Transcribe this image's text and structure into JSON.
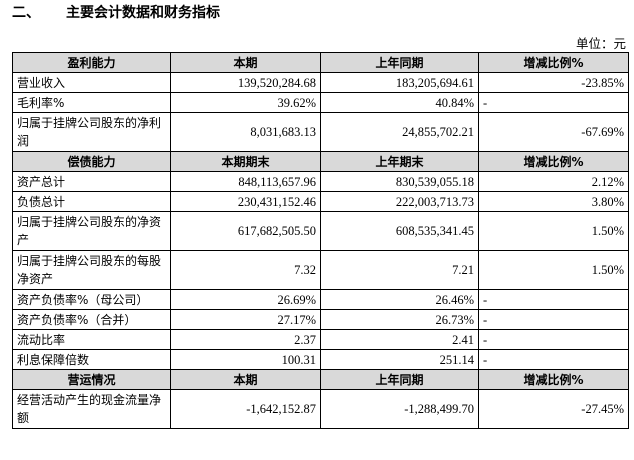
{
  "header": {
    "number": "二、",
    "title": "主要会计数据和财务指标",
    "unit": "单位：元"
  },
  "table": {
    "sections": [
      {
        "header": [
          "盈利能力",
          "本期",
          "上年同期",
          "增减比例%"
        ],
        "rows": [
          [
            "营业收入",
            "139,520,284.68",
            "183,205,694.61",
            "-23.85%"
          ],
          [
            "毛利率%",
            "39.62%",
            "40.84%",
            "-"
          ],
          [
            "归属于挂牌公司股东的净利润",
            "8,031,683.13",
            "24,855,702.21",
            "-67.69%"
          ]
        ]
      },
      {
        "header": [
          "偿债能力",
          "本期期末",
          "上年期末",
          "增减比例%"
        ],
        "rows": [
          [
            "资产总计",
            "848,113,657.96",
            "830,539,055.18",
            "2.12%"
          ],
          [
            "负债总计",
            "230,431,152.46",
            "222,003,713.73",
            "3.80%"
          ],
          [
            "归属于挂牌公司股东的净资产",
            "617,682,505.50",
            "608,535,341.45",
            "1.50%"
          ],
          [
            "归属于挂牌公司股东的每股净资产",
            "7.32",
            "7.21",
            "1.50%"
          ],
          [
            "资产负债率%（母公司）",
            "26.69%",
            "26.46%",
            "-"
          ],
          [
            "资产负债率%（合并）",
            "27.17%",
            "26.73%",
            "-"
          ],
          [
            "流动比率",
            "2.37",
            "2.41",
            "-"
          ],
          [
            "利息保障倍数",
            "100.31",
            "251.14",
            "-"
          ]
        ]
      },
      {
        "header": [
          "营运情况",
          "本期",
          "上年同期",
          "增减比例%"
        ],
        "rows": [
          [
            "经营活动产生的现金流量净额",
            "-1,642,152.87",
            "-1,288,499.70",
            "-27.45%"
          ]
        ]
      }
    ]
  }
}
